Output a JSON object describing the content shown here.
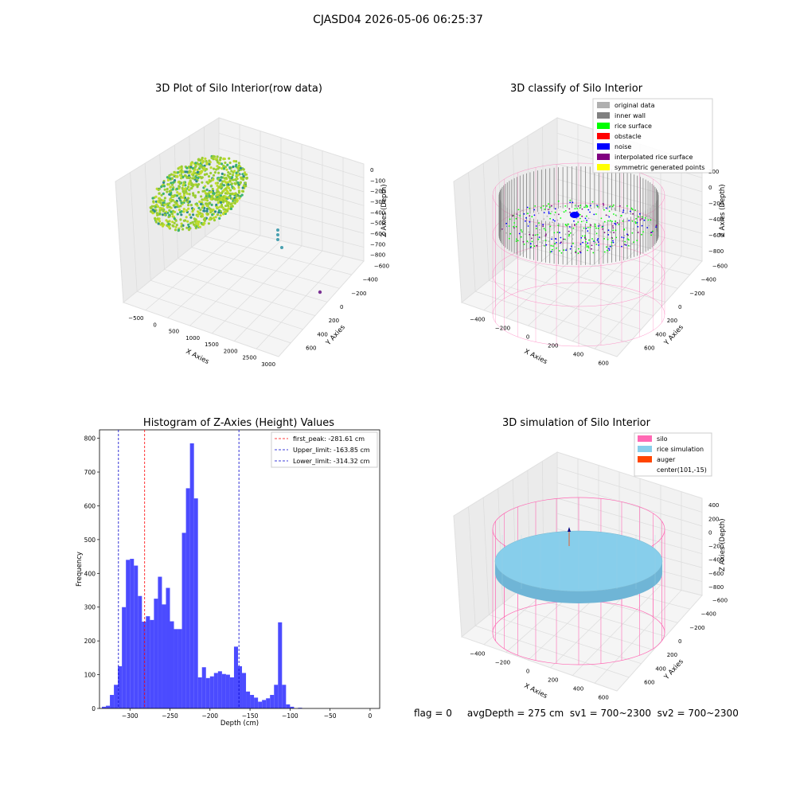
{
  "figure": {
    "title": "CJASD04 2026-05-06 06:25:37",
    "footer": "flag = 0     avgDepth = 275 cm  sv1 = 700~2300  sv2 = 700~2300"
  },
  "colors": {
    "histogram_bar": "#4b4bff",
    "first_peak": "#ff0000",
    "limit_lines": "#0000cc",
    "silo": "#ff69b4",
    "rice_simulation": "#87ceeb",
    "auger": "#ff4500",
    "inner_wall": "#808080",
    "rice_surface": "#00ff00",
    "obstacle": "#ff0000",
    "noise": "#0000ff",
    "interpolated_rice_surface": "#800080",
    "symmetric_generated_points": "#ffff00",
    "original_data": "#b0b0b0"
  },
  "chart_data": [
    {
      "type": "scatter3d",
      "title": "3D Plot of Silo Interior(row data)",
      "xlabel": "X Axies",
      "ylabel": "Y Axies",
      "zlabel": "Z Axies (Depth)",
      "x_ticks": [
        "−500",
        "0",
        "500",
        "1000",
        "1500",
        "2000",
        "2500",
        "3000"
      ],
      "y_ticks": [
        "−600",
        "−400",
        "−200",
        "0",
        "200",
        "400",
        "600"
      ],
      "z_ticks": [
        "0",
        "−100",
        "−200",
        "−300",
        "−400",
        "−500",
        "−600",
        "−700",
        "−800"
      ]
    },
    {
      "type": "scatter3d",
      "title": "3D classify of Silo Interior",
      "xlabel": "X Axies",
      "ylabel": "Y Axies",
      "zlabel": "Z Axies (Depth)",
      "x_ticks": [
        "−400",
        "−200",
        "0",
        "200",
        "400",
        "600"
      ],
      "y_ticks": [
        "−600",
        "−400",
        "−200",
        "0",
        "200",
        "400",
        "600"
      ],
      "z_ticks": [
        "200",
        "0",
        "−200",
        "−400",
        "−600",
        "−800"
      ],
      "legend": [
        "original data",
        "inner wall",
        "rice surface",
        "obstacle",
        "noise",
        "interpolated rice surface",
        "symmetric generated points"
      ],
      "legend_position": "top-right"
    },
    {
      "type": "bar",
      "title": "Histogram of Z-Axies (Height) Values",
      "xlabel": "Depth (cm)",
      "ylabel": "Frequency",
      "xlim": [
        -338,
        12
      ],
      "ylim": [
        0,
        825
      ],
      "x_ticks": [
        -300,
        -250,
        -200,
        -150,
        -100,
        -50,
        0
      ],
      "y_ticks": [
        0,
        100,
        200,
        300,
        400,
        500,
        600,
        700,
        800
      ],
      "bin_width": 5,
      "bin_start": -335,
      "values": [
        5,
        8,
        40,
        70,
        125,
        300,
        440,
        443,
        423,
        333,
        257,
        273,
        262,
        325,
        390,
        308,
        357,
        258,
        235,
        235,
        520,
        652,
        785,
        622,
        92,
        122,
        90,
        95,
        105,
        110,
        102,
        100,
        92,
        183,
        125,
        105,
        50,
        40,
        32,
        20,
        25,
        30,
        40,
        70,
        255,
        70,
        12,
        5,
        0,
        2,
        0
      ],
      "vlines": [
        {
          "label": "first_peak: -281.61 cm",
          "x": -281.61,
          "color": "#ff0000"
        },
        {
          "label": "Upper_limit: -163.85 cm",
          "x": -163.85,
          "color": "#0000cc"
        },
        {
          "label": "Lower_limit: -314.32 cm",
          "x": -314.32,
          "color": "#0000cc"
        }
      ],
      "legend_position": "top-right"
    },
    {
      "type": "surface3d",
      "title": "3D simulation of Silo Interior",
      "xlabel": "X Axies",
      "ylabel": "Y Axies",
      "zlabel": "Z Axies (Depth)",
      "x_ticks": [
        "−400",
        "−200",
        "0",
        "200",
        "400",
        "600"
      ],
      "y_ticks": [
        "−600",
        "−400",
        "−200",
        "0",
        "200",
        "400",
        "600"
      ],
      "z_ticks": [
        "400",
        "200",
        "0",
        "−200",
        "−400",
        "−600",
        "−800"
      ],
      "legend": [
        "silo",
        "rice simulation",
        "auger",
        "center(101,-15)"
      ],
      "legend_position": "top-right"
    }
  ]
}
